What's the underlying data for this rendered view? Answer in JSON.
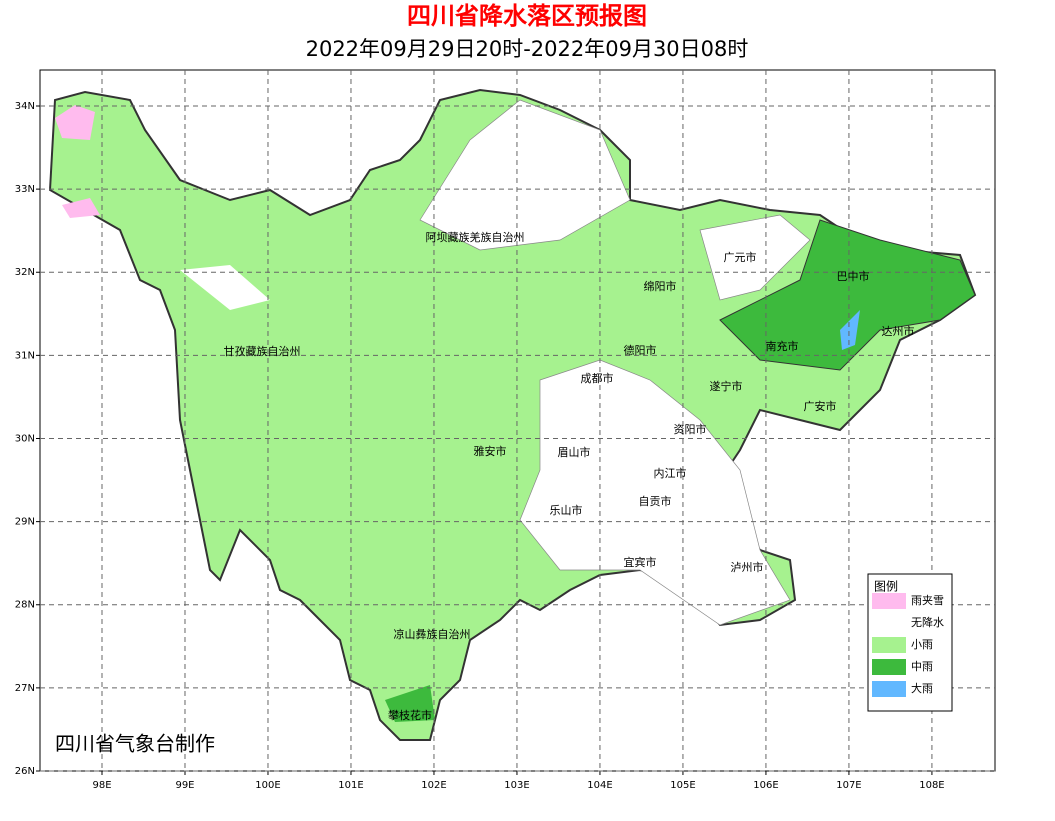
{
  "header": {
    "title": "四川省降水落区预报图",
    "subtitle": "2022年09月29日20时-2022年09月30日08时"
  },
  "map": {
    "xlim": [
      97.253,
      108.76
    ],
    "ylim": [
      26,
      34.433
    ],
    "xticks": [
      {
        "value": 98,
        "label": "98E"
      },
      {
        "value": 99,
        "label": "99E"
      },
      {
        "value": 100,
        "label": "100E"
      },
      {
        "value": 101,
        "label": "101E"
      },
      {
        "value": 102,
        "label": "102E"
      },
      {
        "value": 103,
        "label": "103E"
      },
      {
        "value": 104,
        "label": "104E"
      },
      {
        "value": 105,
        "label": "105E"
      },
      {
        "value": 106,
        "label": "106E"
      },
      {
        "value": 107,
        "label": "107E"
      },
      {
        "value": 108,
        "label": "108E"
      }
    ],
    "yticks": [
      {
        "value": 26,
        "label": "26N"
      },
      {
        "value": 27,
        "label": "27N"
      },
      {
        "value": 28,
        "label": "28N"
      },
      {
        "value": 29,
        "label": "29N"
      },
      {
        "value": 30,
        "label": "30N"
      },
      {
        "value": 31,
        "label": "31N"
      },
      {
        "value": 32,
        "label": "32N"
      },
      {
        "value": 33,
        "label": "33N"
      },
      {
        "value": 34,
        "label": "34N"
      }
    ],
    "grid": true,
    "regions": [
      "阿坝藏族羌族自治州",
      "甘孜藏族自治州",
      "广元市",
      "巴中市",
      "绵阳市",
      "达州市",
      "德阳市",
      "南充市",
      "成都市",
      "遂宁市",
      "广安市",
      "资阳市",
      "雅安市",
      "眉山市",
      "内江市",
      "自贡市",
      "乐山市",
      "宜宾市",
      "泸州市",
      "凉山彝族自治州",
      "攀枝花市"
    ]
  },
  "legend": {
    "title": "图例",
    "items": [
      {
        "name": "雨夹雪",
        "color": "#ffbbee"
      },
      {
        "name": "无降水",
        "color": "#ffffff"
      },
      {
        "name": "小雨",
        "color": "#a6f28f"
      },
      {
        "name": "中雨",
        "color": "#3dba3d"
      },
      {
        "name": "大雨",
        "color": "#61b8ff"
      }
    ]
  },
  "credit": "四川省气象台制作"
}
